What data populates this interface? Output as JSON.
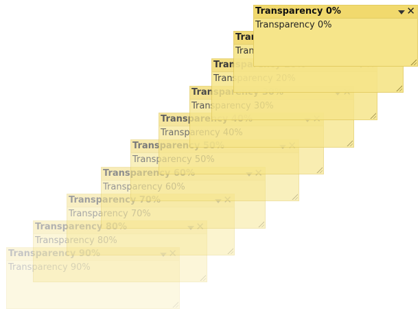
{
  "notes": [
    {
      "title": "Transparency 0%",
      "body": "Transparency 0%",
      "transparency": 0
    },
    {
      "title": "Transparency 10%",
      "body": "Transparency 10%",
      "transparency": 10
    },
    {
      "title": "Transparency 20%",
      "body": "Transparency 20%",
      "transparency": 20
    },
    {
      "title": "Transparency 30%",
      "body": "Transparency 30%",
      "transparency": 30
    },
    {
      "title": "Transparency 40%",
      "body": "Transparency 40%",
      "transparency": 40
    },
    {
      "title": "Transparency 50%",
      "body": "Transparency 50%",
      "transparency": 50
    },
    {
      "title": "Transparency 60%",
      "body": "Transparency 60%",
      "transparency": 60
    },
    {
      "title": "Transparency 70%",
      "body": "Transparency 70%",
      "transparency": 70
    },
    {
      "title": "Transparency 80%",
      "body": "Transparency 80%",
      "transparency": 80
    },
    {
      "title": "Transparency 90%",
      "body": "Transparency 90%",
      "transparency": 90
    }
  ],
  "icons": {
    "menu": "dropdown-arrow-icon",
    "close": "close-icon"
  },
  "colors": {
    "note_body": "#f6e58a",
    "note_header": "#f1d96d",
    "border": "#e3cc61"
  }
}
